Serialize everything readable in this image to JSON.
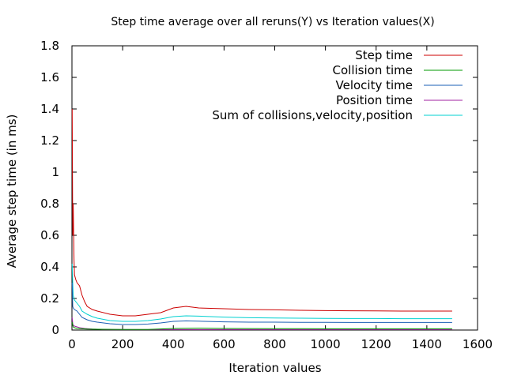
{
  "chart_data": {
    "type": "line",
    "title": "Step time average over all reruns(Y) vs Iteration values(X)",
    "xlabel": "Iteration values",
    "ylabel": "Average step time (in ms)",
    "xlim": [
      0,
      1600
    ],
    "ylim": [
      0,
      1.8
    ],
    "xticks": [
      "0",
      "200",
      "400",
      "600",
      "800",
      "1000",
      "1200",
      "1400",
      "1600"
    ],
    "yticks": [
      "0",
      "0.2",
      "0.4",
      "0.6",
      "0.8",
      "1",
      "1.2",
      "1.4",
      "1.6",
      "1.8"
    ],
    "grid": false,
    "legend_position": "top-right",
    "series": [
      {
        "name": "Step time",
        "color": "#cc0000",
        "x": [
          1,
          3,
          5,
          8,
          10,
          15,
          20,
          30,
          40,
          50,
          60,
          80,
          100,
          150,
          200,
          250,
          300,
          350,
          400,
          450,
          500,
          600,
          700,
          800,
          900,
          1000,
          1100,
          1200,
          1300,
          1400,
          1500
        ],
        "y": [
          1.4,
          0.6,
          0.8,
          0.45,
          0.35,
          0.32,
          0.3,
          0.28,
          0.22,
          0.18,
          0.15,
          0.13,
          0.12,
          0.1,
          0.09,
          0.09,
          0.1,
          0.11,
          0.14,
          0.15,
          0.14,
          0.135,
          0.13,
          0.128,
          0.125,
          0.123,
          0.122,
          0.121,
          0.12,
          0.12,
          0.12
        ]
      },
      {
        "name": "Collision time",
        "color": "#009900",
        "x": [
          1,
          3,
          5,
          10,
          20,
          40,
          60,
          100,
          200,
          300,
          400,
          500,
          600,
          800,
          1000,
          1200,
          1400,
          1500
        ],
        "y": [
          0.05,
          0.03,
          0.02,
          0.015,
          0.01,
          0.008,
          0.006,
          0.005,
          0.004,
          0.004,
          0.01,
          0.012,
          0.01,
          0.009,
          0.008,
          0.008,
          0.008,
          0.008
        ]
      },
      {
        "name": "Velocity time",
        "color": "#1a5fb4",
        "x": [
          1,
          3,
          5,
          10,
          20,
          30,
          40,
          60,
          80,
          100,
          150,
          200,
          250,
          300,
          350,
          400,
          450,
          500,
          600,
          700,
          800,
          900,
          1000,
          1100,
          1200,
          1300,
          1400,
          1500
        ],
        "y": [
          0.3,
          0.15,
          0.14,
          0.13,
          0.12,
          0.1,
          0.08,
          0.065,
          0.055,
          0.05,
          0.04,
          0.035,
          0.035,
          0.038,
          0.045,
          0.055,
          0.058,
          0.056,
          0.052,
          0.05,
          0.05,
          0.049,
          0.049,
          0.048,
          0.048,
          0.048,
          0.048,
          0.048
        ]
      },
      {
        "name": "Position time",
        "color": "#a020a0",
        "x": [
          1,
          3,
          5,
          10,
          20,
          30,
          50,
          80,
          120,
          200,
          400,
          600,
          800,
          1000,
          1200,
          1400,
          1500
        ],
        "y": [
          0.08,
          0.04,
          0.03,
          0.025,
          0.02,
          0.015,
          0.01,
          0.006,
          0.004,
          0.003,
          0.003,
          0.003,
          0.003,
          0.003,
          0.003,
          0.003,
          0.003
        ]
      },
      {
        "name": "Sum of collisions,velocity,position",
        "color": "#00d0d0",
        "x": [
          1,
          3,
          5,
          8,
          10,
          20,
          30,
          40,
          60,
          80,
          100,
          150,
          200,
          250,
          300,
          350,
          400,
          450,
          500,
          600,
          700,
          800,
          900,
          1000,
          1100,
          1200,
          1300,
          1400,
          1500
        ],
        "y": [
          0.42,
          0.3,
          0.22,
          0.2,
          0.19,
          0.17,
          0.15,
          0.12,
          0.1,
          0.085,
          0.075,
          0.06,
          0.055,
          0.055,
          0.06,
          0.07,
          0.085,
          0.09,
          0.088,
          0.082,
          0.078,
          0.076,
          0.075,
          0.074,
          0.073,
          0.073,
          0.072,
          0.072,
          0.072
        ]
      }
    ]
  }
}
